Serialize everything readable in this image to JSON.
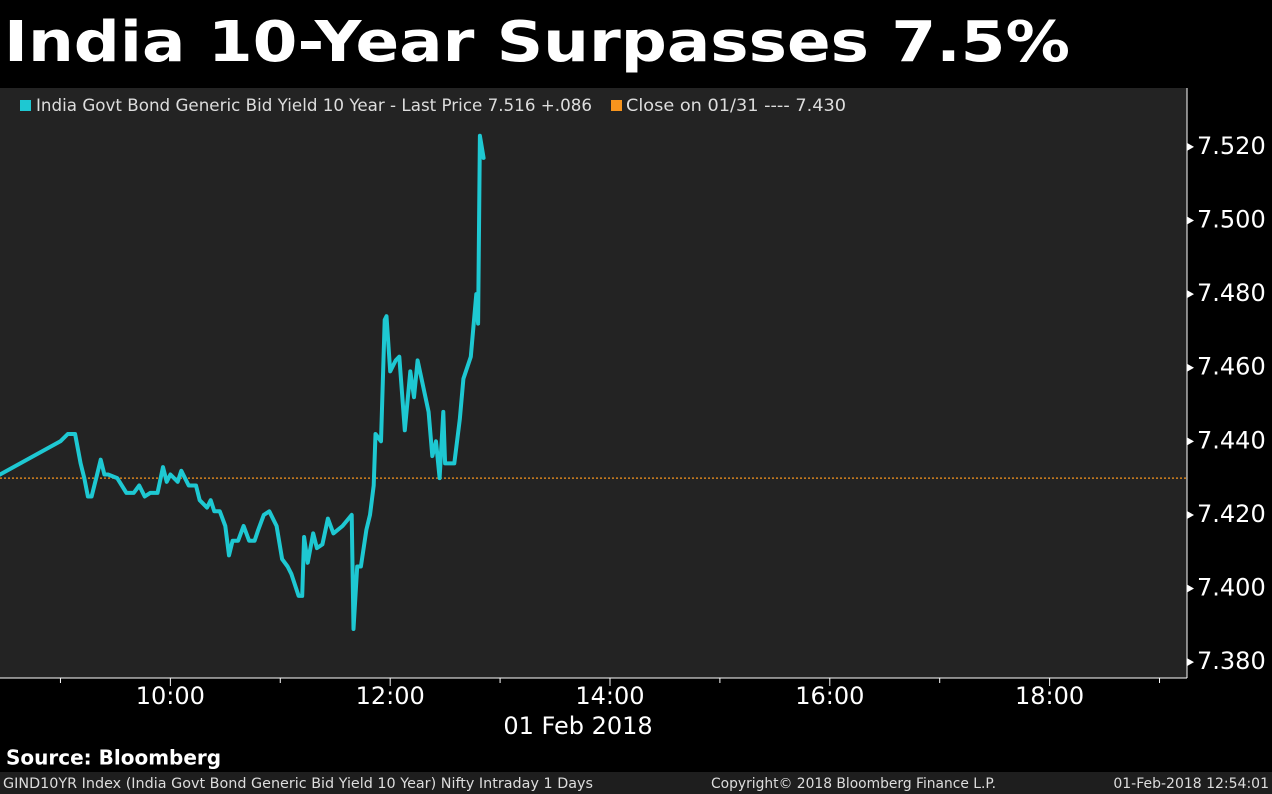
{
  "chart_data": {
    "type": "line",
    "title": "India 10-Year Surpasses 7.5%",
    "xlabel": "01 Feb 2018",
    "source": "Source: Bloomberg",
    "footer_left": "GIND10YR Index (India Govt Bond Generic Bid Yield 10 Year) Nifty Intraday 1 Days",
    "footer_center": "Copyright© 2018 Bloomberg Finance L.P.",
    "footer_right": "01-Feb-2018 12:54:01",
    "x": [
      "08:27",
      "09:00",
      "09:04",
      "09:08",
      "09:11",
      "09:13",
      "09:15",
      "09:17",
      "09:20",
      "09:22",
      "09:24",
      "09:26",
      "09:31",
      "09:36",
      "09:40",
      "09:43",
      "09:46",
      "09:49",
      "09:53",
      "09:56",
      "09:58",
      "10:00",
      "10:04",
      "10:06",
      "10:10",
      "10:14",
      "10:16",
      "10:20",
      "10:22",
      "10:24",
      "10:27",
      "10:30",
      "10:32",
      "10:34",
      "10:37",
      "10:40",
      "10:43",
      "10:46",
      "10:48",
      "10:51",
      "10:54",
      "10:58",
      "11:01",
      "11:04",
      "11:06",
      "11:10",
      "11:12",
      "11:13",
      "11:15",
      "11:18",
      "11:20",
      "11:23",
      "11:26",
      "11:29",
      "11:34",
      "11:39",
      "11:40",
      "11:42",
      "11:44",
      "11:47",
      "11:49",
      "11:51",
      "11:52",
      "11:55",
      "11:57",
      "11:58",
      "12:00",
      "12:03",
      "12:05",
      "12:08",
      "12:11",
      "12:13",
      "12:15",
      "12:21",
      "12:23",
      "12:25",
      "12:27",
      "12:29",
      "12:30",
      "12:35",
      "12:38",
      "12:40",
      "12:44",
      "12:47",
      "12:48",
      "12:49",
      "12:51"
    ],
    "series": [
      {
        "name": "India Govt Bond Generic Bid Yield 10 Year - Last Price 7.516  +.086",
        "color": "#1ec8d2",
        "values": [
          7.431,
          7.44,
          7.442,
          7.442,
          7.434,
          7.43,
          7.425,
          7.425,
          7.431,
          7.435,
          7.431,
          7.431,
          7.43,
          7.426,
          7.426,
          7.428,
          7.425,
          7.426,
          7.426,
          7.433,
          7.429,
          7.431,
          7.429,
          7.432,
          7.428,
          7.428,
          7.424,
          7.422,
          7.424,
          7.421,
          7.421,
          7.417,
          7.409,
          7.413,
          7.413,
          7.417,
          7.413,
          7.413,
          7.416,
          7.42,
          7.421,
          7.417,
          7.408,
          7.406,
          7.404,
          7.398,
          7.398,
          7.414,
          7.407,
          7.415,
          7.411,
          7.412,
          7.419,
          7.415,
          7.417,
          7.42,
          7.389,
          7.406,
          7.406,
          7.416,
          7.42,
          7.428,
          7.442,
          7.44,
          7.473,
          7.474,
          7.459,
          7.462,
          7.463,
          7.443,
          7.459,
          7.452,
          7.462,
          7.448,
          7.436,
          7.44,
          7.43,
          7.448,
          7.434,
          7.434,
          7.446,
          7.457,
          7.463,
          7.48,
          7.472,
          7.523,
          7.517
        ]
      }
    ],
    "reference_line": {
      "name": "Close on 01/31 ---- 7.430",
      "value": 7.43,
      "color": "#f7941d"
    },
    "xlim": [
      "08:27",
      "19:15"
    ],
    "xticks": [
      "10:00",
      "12:00",
      "14:00",
      "16:00",
      "18:00"
    ],
    "xminor_ticks": [
      "09:00",
      "11:00",
      "13:00",
      "15:00",
      "17:00",
      "19:00"
    ],
    "ylim": [
      7.3757,
      7.536
    ],
    "yticks": [
      {
        "value": 7.38,
        "label": "7.380"
      },
      {
        "value": 7.4,
        "label": "7.400"
      },
      {
        "value": 7.42,
        "label": "7.420"
      },
      {
        "value": 7.44,
        "label": "7.440"
      },
      {
        "value": 7.46,
        "label": "7.460"
      },
      {
        "value": 7.48,
        "label": "7.480"
      },
      {
        "value": 7.5,
        "label": "7.500"
      },
      {
        "value": 7.52,
        "label": "7.520"
      }
    ]
  }
}
